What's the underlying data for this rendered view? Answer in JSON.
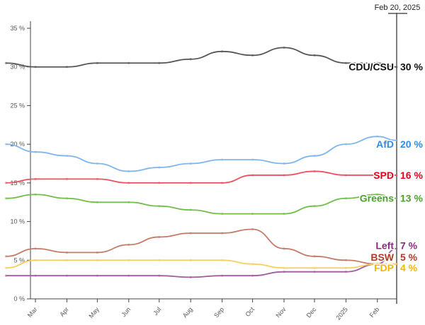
{
  "chart_data": {
    "type": "line",
    "title": "",
    "xlabel": "",
    "ylabel": "",
    "ylim": [
      0,
      35
    ],
    "yticks": [
      "0 %",
      "5 %",
      "10 %",
      "15 %",
      "20 %",
      "25 %",
      "30 %",
      "35 %"
    ],
    "ytick_values": [
      0,
      5,
      10,
      15,
      20,
      25,
      30,
      35
    ],
    "xticks": [
      {
        "label": "Mar",
        "date": "2024-03-01"
      },
      {
        "label": "Apr",
        "date": "2024-04-01"
      },
      {
        "label": "May",
        "date": "2024-05-01"
      },
      {
        "label": "Jun",
        "date": "2024-06-01"
      },
      {
        "label": "Jul",
        "date": "2024-07-01"
      },
      {
        "label": "Aug",
        "date": "2024-08-01"
      },
      {
        "label": "Sep",
        "date": "2024-09-01"
      },
      {
        "label": "Oct",
        "date": "2024-10-01"
      },
      {
        "label": "Nov",
        "date": "2024-11-01"
      },
      {
        "label": "Dec",
        "date": "2024-12-01"
      },
      {
        "label": "2025",
        "date": "2025-01-01"
      },
      {
        "label": "Feb",
        "date": "2025-02-01"
      }
    ],
    "current_date_label": "Feb 20, 2025",
    "current_date": "2025-02-20",
    "grid": false,
    "dates": [
      "2024-02-01",
      "2024-03-01",
      "2024-04-01",
      "2024-05-01",
      "2024-06-01",
      "2024-07-01",
      "2024-08-01",
      "2024-09-01",
      "2024-10-01",
      "2024-11-01",
      "2024-12-01",
      "2025-01-01",
      "2025-02-01",
      "2025-02-20"
    ],
    "series": [
      {
        "name": "CDU/CSU",
        "end_label": "30 %",
        "color": "#555555",
        "label_color": "#111111",
        "values": [
          30.5,
          30,
          30,
          30.5,
          30.5,
          30.5,
          31,
          32,
          31.5,
          32.5,
          31.5,
          30.5,
          30.5,
          30
        ]
      },
      {
        "name": "AfD",
        "end_label": "20 %",
        "color": "#7fb5ee",
        "label_color": "#2f8be6",
        "values": [
          20,
          19,
          18.5,
          17.5,
          16.5,
          17,
          17.5,
          18,
          18,
          17.5,
          18.5,
          20,
          21,
          20.5
        ]
      },
      {
        "name": "SPD",
        "end_label": "16 %",
        "color": "#f0505e",
        "label_color": "#e3001b",
        "values": [
          15,
          15.5,
          15.5,
          15.5,
          15,
          15,
          15,
          15,
          16,
          16,
          16.5,
          16,
          16,
          16
        ]
      },
      {
        "name": "Greens",
        "end_label": "13 %",
        "color": "#72bd48",
        "label_color": "#4aa02c",
        "values": [
          13,
          13.5,
          13,
          12.5,
          12.5,
          12,
          11.5,
          11,
          11,
          11,
          12,
          13,
          13.5,
          13
        ]
      },
      {
        "name": "Left",
        "end_label": "7 %",
        "color": "#a25aa0",
        "label_color": "#8b2a7f",
        "values": [
          3,
          3,
          3,
          3,
          3,
          3,
          2.8,
          3,
          3,
          3.5,
          3.5,
          3.5,
          4.5,
          6.5
        ]
      },
      {
        "name": "BSW",
        "end_label": "5 %",
        "color": "#c47a66",
        "label_color": "#b13a2a",
        "values": [
          5.5,
          6.5,
          6,
          6,
          7,
          8,
          8.5,
          8.5,
          9,
          6.5,
          5.5,
          5,
          4.5,
          4.5
        ]
      },
      {
        "name": "FDP",
        "end_label": "4 %",
        "color": "#f7cf5a",
        "label_color": "#f2b705",
        "values": [
          4,
          5,
          5,
          5,
          5,
          5,
          5,
          5,
          4.5,
          4,
          4,
          4,
          4.5,
          4.5
        ]
      }
    ]
  }
}
